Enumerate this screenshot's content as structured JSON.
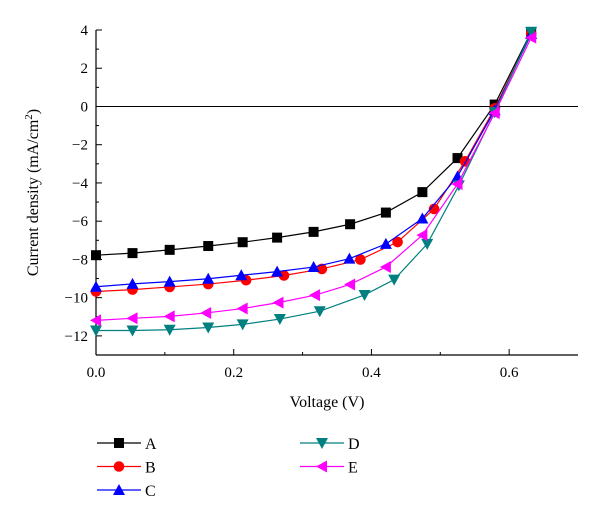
{
  "chart_data": {
    "type": "line",
    "xlabel": "Voltage (V)",
    "ylabel": "Current density (mA/cm",
    "ylabel_sup": "2",
    "ylabel_end": ")",
    "xlim": [
      0.0,
      0.7
    ],
    "ylim": [
      -13,
      4
    ],
    "xticks": [
      0.0,
      0.2,
      0.4,
      0.6
    ],
    "xtick_labels": [
      "0.0",
      "0.2",
      "0.4",
      "0.6"
    ],
    "yticks": [
      4,
      2,
      0,
      -2,
      -4,
      -6,
      -8,
      -10,
      -12
    ],
    "ytick_labels": [
      "4",
      "2",
      "0",
      "−2",
      "−4",
      "−6",
      "−8",
      "−10",
      "−12"
    ],
    "zero_line": true,
    "grid": false,
    "legend_position": "below",
    "series": [
      {
        "name": "A",
        "color": "#000000",
        "marker": "square",
        "x": [
          0.0,
          0.053,
          0.107,
          0.163,
          0.213,
          0.263,
          0.316,
          0.369,
          0.421,
          0.474,
          0.525,
          0.579,
          0.632
        ],
        "y": [
          -7.78,
          -7.67,
          -7.5,
          -7.3,
          -7.1,
          -6.86,
          -6.56,
          -6.16,
          -5.55,
          -4.48,
          -2.7,
          0.1,
          3.9
        ]
      },
      {
        "name": "B",
        "color": "#ff0000",
        "marker": "circle",
        "x": [
          0.0,
          0.053,
          0.107,
          0.163,
          0.218,
          0.273,
          0.328,
          0.384,
          0.438,
          0.491,
          0.536,
          0.579,
          0.632
        ],
        "y": [
          -9.68,
          -9.58,
          -9.44,
          -9.29,
          -9.09,
          -8.84,
          -8.5,
          -8.01,
          -7.09,
          -5.36,
          -2.87,
          -0.1,
          3.8
        ]
      },
      {
        "name": "C",
        "color": "#0000ff",
        "marker": "triangle-up",
        "x": [
          0.0,
          0.053,
          0.107,
          0.163,
          0.211,
          0.263,
          0.316,
          0.368,
          0.421,
          0.474,
          0.525,
          0.579,
          0.632
        ],
        "y": [
          -9.43,
          -9.28,
          -9.16,
          -9.01,
          -8.83,
          -8.64,
          -8.4,
          -7.96,
          -7.19,
          -5.86,
          -3.66,
          -0.2,
          3.8
        ]
      },
      {
        "name": "D",
        "color": "#008080",
        "marker": "triangle-down",
        "x": [
          0.0,
          0.053,
          0.107,
          0.163,
          0.213,
          0.267,
          0.325,
          0.39,
          0.433,
          0.481,
          0.527,
          0.579,
          0.632
        ],
        "y": [
          -11.72,
          -11.72,
          -11.68,
          -11.56,
          -11.4,
          -11.12,
          -10.71,
          -9.86,
          -9.06,
          -7.19,
          -4.13,
          -0.3,
          3.9
        ]
      },
      {
        "name": "E",
        "color": "#ff00ff",
        "marker": "triangle-left",
        "x": [
          0.0,
          0.053,
          0.107,
          0.16,
          0.213,
          0.265,
          0.318,
          0.369,
          0.421,
          0.474,
          0.525,
          0.579,
          0.632
        ],
        "y": [
          -11.19,
          -11.08,
          -10.98,
          -10.8,
          -10.57,
          -10.26,
          -9.87,
          -9.31,
          -8.4,
          -6.73,
          -4.06,
          -0.35,
          3.6
        ]
      }
    ]
  }
}
